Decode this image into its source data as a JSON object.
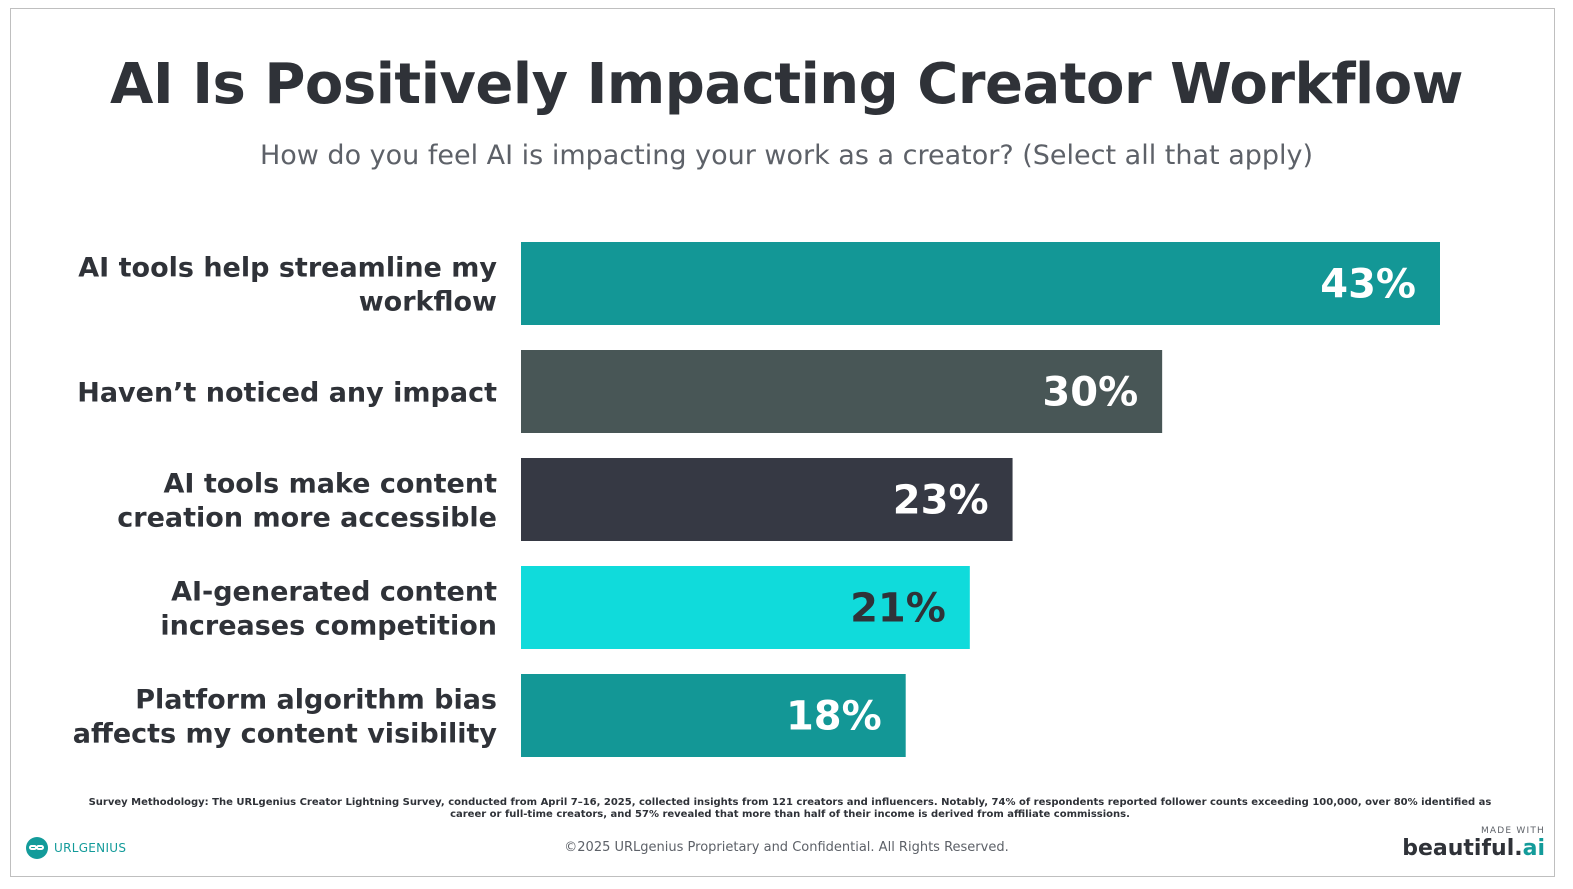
{
  "title": "AI Is Positively Impacting Creator Workflow",
  "subtitle": "How do you feel AI is impacting your work as a creator? (Select all that apply)",
  "chart_data": {
    "type": "bar",
    "orientation": "horizontal",
    "categories": [
      [
        "AI tools help streamline my",
        "workflow"
      ],
      [
        "Haven’t noticed any impact"
      ],
      [
        "AI tools make content",
        "creation more accessible"
      ],
      [
        "AI-generated content",
        "increases competition"
      ],
      [
        "Platform algorithm bias",
        "affects my content visibility"
      ]
    ],
    "values": [
      43,
      30,
      23,
      21,
      18
    ],
    "value_labels": [
      "43%",
      "30%",
      "23%",
      "21%",
      "18%"
    ],
    "bar_colors": [
      "#139796",
      "#485656",
      "#363944",
      "#10dbdb",
      "#139796"
    ],
    "label_colors": [
      "#ffffff",
      "#ffffff",
      "#ffffff",
      "#2f3238",
      "#ffffff"
    ],
    "xlim": [
      0,
      43
    ],
    "grid": false,
    "legend": "none"
  },
  "footer": {
    "methodology": "Survey Methodology: The URLgenius Creator Lightning Survey, conducted from April 7–16, 2025, collected insights from 121 creators and influencers. Notably, 74% of respondents reported follower counts exceeding 100,000, over 80% identified as career or full-time creators, and 57% revealed that more than half of their income is derived from affiliate commissions.",
    "copyright": "©2025 URLgenius Proprietary and Confidential. All Rights Reserved.",
    "logo_text": "URLGENIUS",
    "badge_top": "MADE WITH",
    "badge_main": "beautiful.",
    "badge_accent": "ai"
  }
}
